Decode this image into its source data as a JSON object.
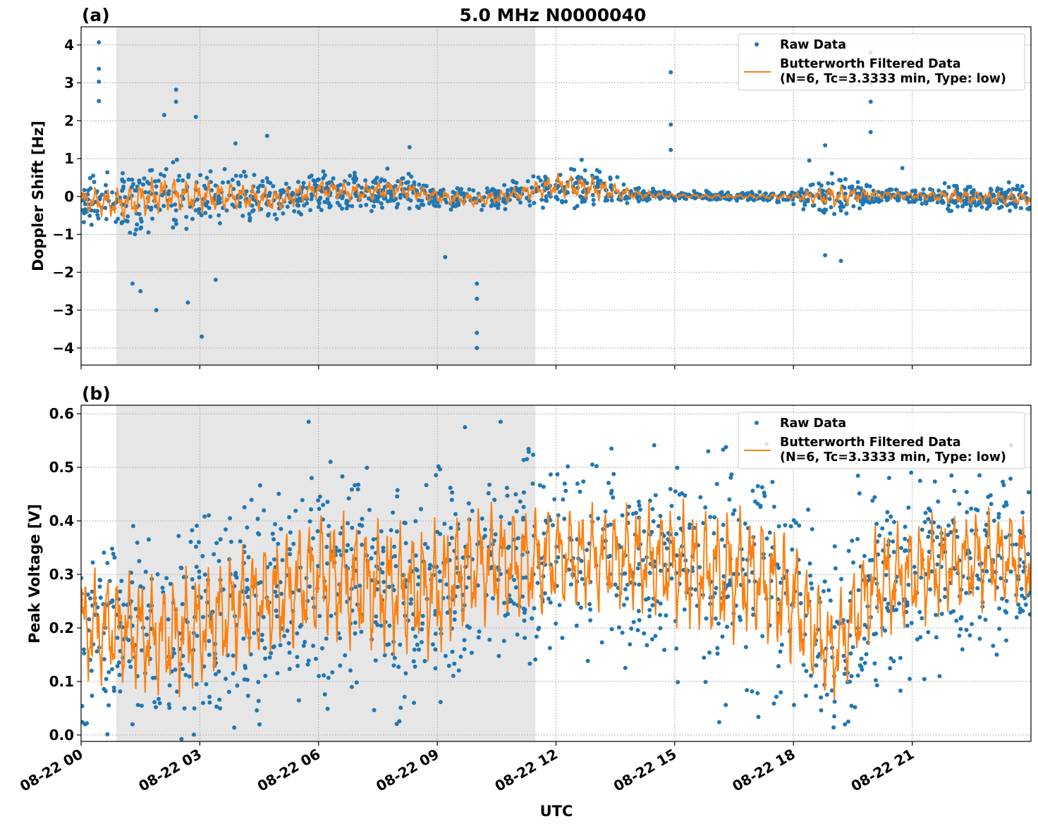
{
  "chart_data": {
    "title": "5.0 MHz N0000040",
    "xlabel": "UTC",
    "x_unit": "hours UTC on 08-22",
    "x_ticks": [
      0,
      3,
      6,
      9,
      12,
      15,
      18,
      21
    ],
    "x_tick_labels": [
      "08-22 00",
      "08-22 03",
      "08-22 06",
      "08-22 09",
      "08-22 12",
      "08-22 15",
      "08-22 18",
      "08-22 21"
    ],
    "xlim": [
      0,
      24
    ],
    "shaded_interval_hours": [
      0.89,
      11.48
    ],
    "grid": true,
    "colors": {
      "raw": "#1f77b4",
      "filtered": "#ff7f0e",
      "shade": "#e6e6e6"
    },
    "panels": [
      {
        "label": "(a)",
        "type": "scatter+line",
        "ylabel": "Doppler Shift [Hz]",
        "ylim": [
          -4.45,
          4.48
        ],
        "y_ticks": [
          -4,
          -3,
          -2,
          -1,
          0,
          1,
          2,
          3,
          4
        ],
        "y_tick_labels": [
          "−4",
          "−3",
          "−2",
          "−1",
          "0",
          "1",
          "2",
          "3",
          "4"
        ],
        "legend": {
          "position": "top-right",
          "entries": [
            "Raw Data",
            "Butterworth Filtered Data",
            "(N=6, Tc=3.3333 min, Type: low)"
          ]
        },
        "series": [
          {
            "name": "Butterworth Filtered Data",
            "kind": "line",
            "hours": [
              0,
              1,
              2,
              3,
              4,
              5,
              6,
              7,
              8,
              9,
              10,
              11,
              12,
              13,
              14,
              15,
              16,
              17,
              18,
              19,
              20,
              21,
              22,
              23,
              24
            ],
            "values": [
              -0.1,
              -0.2,
              0.05,
              0.0,
              0.0,
              -0.1,
              0.2,
              0.1,
              0.2,
              0.0,
              -0.1,
              0.05,
              0.3,
              0.2,
              0.05,
              0.02,
              0.0,
              0.0,
              0.0,
              0.0,
              0.05,
              0.02,
              0.0,
              -0.05,
              -0.05
            ]
          },
          {
            "name": "Raw Data",
            "kind": "scatter",
            "envelope_halfwidth": [
              0.5,
              0.7,
              0.8,
              0.7,
              0.6,
              0.5,
              0.4,
              0.4,
              0.4,
              0.3,
              0.3,
              0.3,
              0.5,
              0.5,
              0.2,
              0.1,
              0.1,
              0.1,
              0.15,
              0.5,
              0.2,
              0.15,
              0.3,
              0.3,
              0.3
            ],
            "outliers": [
              [
                0.45,
                4.07
              ],
              [
                0.45,
                3.37
              ],
              [
                0.45,
                3.03
              ],
              [
                0.45,
                2.52
              ],
              [
                2.4,
                2.82
              ],
              [
                2.4,
                2.5
              ],
              [
                2.1,
                2.15
              ],
              [
                2.9,
                2.1
              ],
              [
                1.9,
                -3.0
              ],
              [
                3.05,
                -3.7
              ],
              [
                10.0,
                -4.0
              ],
              [
                10.0,
                -3.6
              ],
              [
                10.0,
                -2.7
              ],
              [
                10.0,
                -2.3
              ],
              [
                14.9,
                3.28
              ],
              [
                14.9,
                1.9
              ],
              [
                14.9,
                1.23
              ],
              [
                19.95,
                3.8
              ],
              [
                19.95,
                3.0
              ],
              [
                19.95,
                2.5
              ],
              [
                19.95,
                1.7
              ],
              [
                18.8,
                1.35
              ],
              [
                18.4,
                0.95
              ],
              [
                20.75,
                0.75
              ],
              [
                19.2,
                -1.7
              ],
              [
                18.8,
                -1.55
              ],
              [
                1.5,
                -2.5
              ],
              [
                2.7,
                -2.8
              ],
              [
                4.7,
                1.6
              ],
              [
                3.9,
                1.4
              ],
              [
                8.3,
                1.3
              ],
              [
                9.2,
                -1.6
              ],
              [
                1.3,
                -2.3
              ],
              [
                3.4,
                -2.2
              ]
            ]
          }
        ]
      },
      {
        "label": "(b)",
        "type": "scatter+line",
        "ylabel": "Peak Voltage [V]",
        "ylim": [
          -0.012,
          0.616
        ],
        "y_ticks": [
          0.0,
          0.1,
          0.2,
          0.3,
          0.4,
          0.5,
          0.6
        ],
        "y_tick_labels": [
          "0.0",
          "0.1",
          "0.2",
          "0.3",
          "0.4",
          "0.5",
          "0.6"
        ],
        "legend": {
          "position": "top-right",
          "entries": [
            "Raw Data",
            "Butterworth Filtered Data",
            "(N=6, Tc=3.3333 min, Type: low)"
          ]
        },
        "series": [
          {
            "name": "Butterworth Filtered Data",
            "kind": "line",
            "hours": [
              0,
              1,
              2,
              3,
              4,
              5,
              6,
              7,
              8,
              9,
              10,
              11,
              12,
              13,
              14,
              15,
              16,
              17,
              18,
              19,
              20,
              21,
              22,
              23,
              24
            ],
            "values": [
              0.2,
              0.2,
              0.18,
              0.2,
              0.24,
              0.26,
              0.3,
              0.28,
              0.27,
              0.27,
              0.32,
              0.32,
              0.33,
              0.33,
              0.33,
              0.32,
              0.3,
              0.3,
              0.25,
              0.15,
              0.28,
              0.3,
              0.32,
              0.33,
              0.33
            ]
          },
          {
            "name": "Raw Data",
            "kind": "scatter",
            "envelope_halfwidth": [
              0.17,
              0.17,
              0.18,
              0.18,
              0.18,
              0.18,
              0.2,
              0.2,
              0.2,
              0.2,
              0.18,
              0.18,
              0.16,
              0.16,
              0.16,
              0.18,
              0.2,
              0.2,
              0.2,
              0.15,
              0.17,
              0.16,
              0.15,
              0.15,
              0.15
            ],
            "outliers": [
              [
                5.75,
                0.585
              ],
              [
                10.6,
                0.585
              ],
              [
                9.7,
                0.575
              ],
              [
                13.4,
                0.535
              ],
              [
                22.7,
                0.485
              ],
              [
                1.3,
                0.02
              ],
              [
                19.3,
                0.02
              ]
            ]
          }
        ]
      }
    ]
  }
}
